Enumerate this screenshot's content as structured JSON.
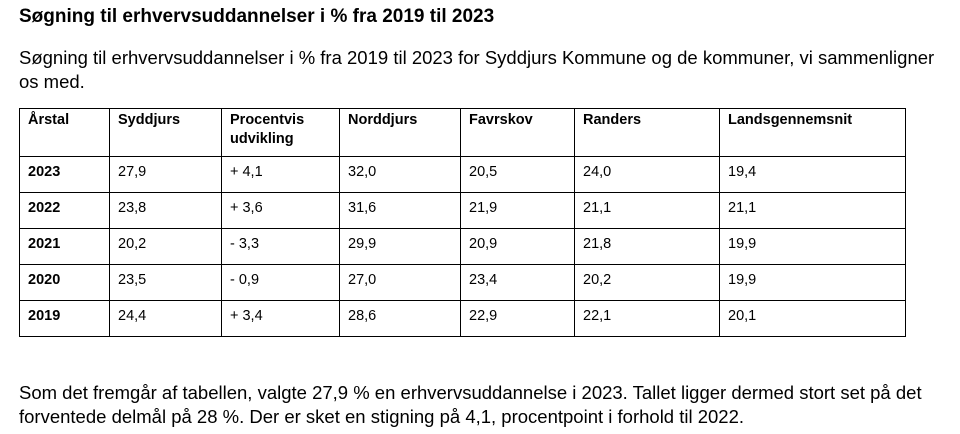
{
  "document": {
    "heading": "Søgning til erhvervsuddannelser i % fra 2019 til 2023",
    "intro": "Søgning til erhvervsuddannelser i % fra 2019 til 2023 for Syddjurs Kommune og de kommuner, vi sammenligner os med.",
    "table": {
      "headers": [
        "Årstal",
        "Syddjurs",
        "Procentvis udvikling",
        "Norddjurs",
        "Favrskov",
        "Randers",
        "Landsgennemsnit"
      ],
      "rows": [
        [
          "2023",
          "27,9",
          "+ 4,1",
          "32,0",
          "20,5",
          "24,0",
          "19,4"
        ],
        [
          "2022",
          "23,8",
          "+ 3,6",
          "31,6",
          "21,9",
          "21,1",
          "21,1"
        ],
        [
          "2021",
          "20,2",
          "- 3,3",
          "29,9",
          "20,9",
          "21,8",
          "19,9"
        ],
        [
          "2020",
          "23,5",
          "- 0,9",
          "27,0",
          "23,4",
          "20,2",
          "19,9"
        ],
        [
          "2019",
          "24,4",
          "+ 3,4",
          "28,6",
          "22,9",
          "22,1",
          "20,1"
        ]
      ]
    },
    "conclusion": "Som det fremgår af tabellen, valgte 27,9 % en erhvervsuddannelse i 2023. Tallet ligger dermed stort set på det forventede delmål på 28 %. Der er sket en stigning på 4,1, procentpoint i forhold til 2022."
  }
}
